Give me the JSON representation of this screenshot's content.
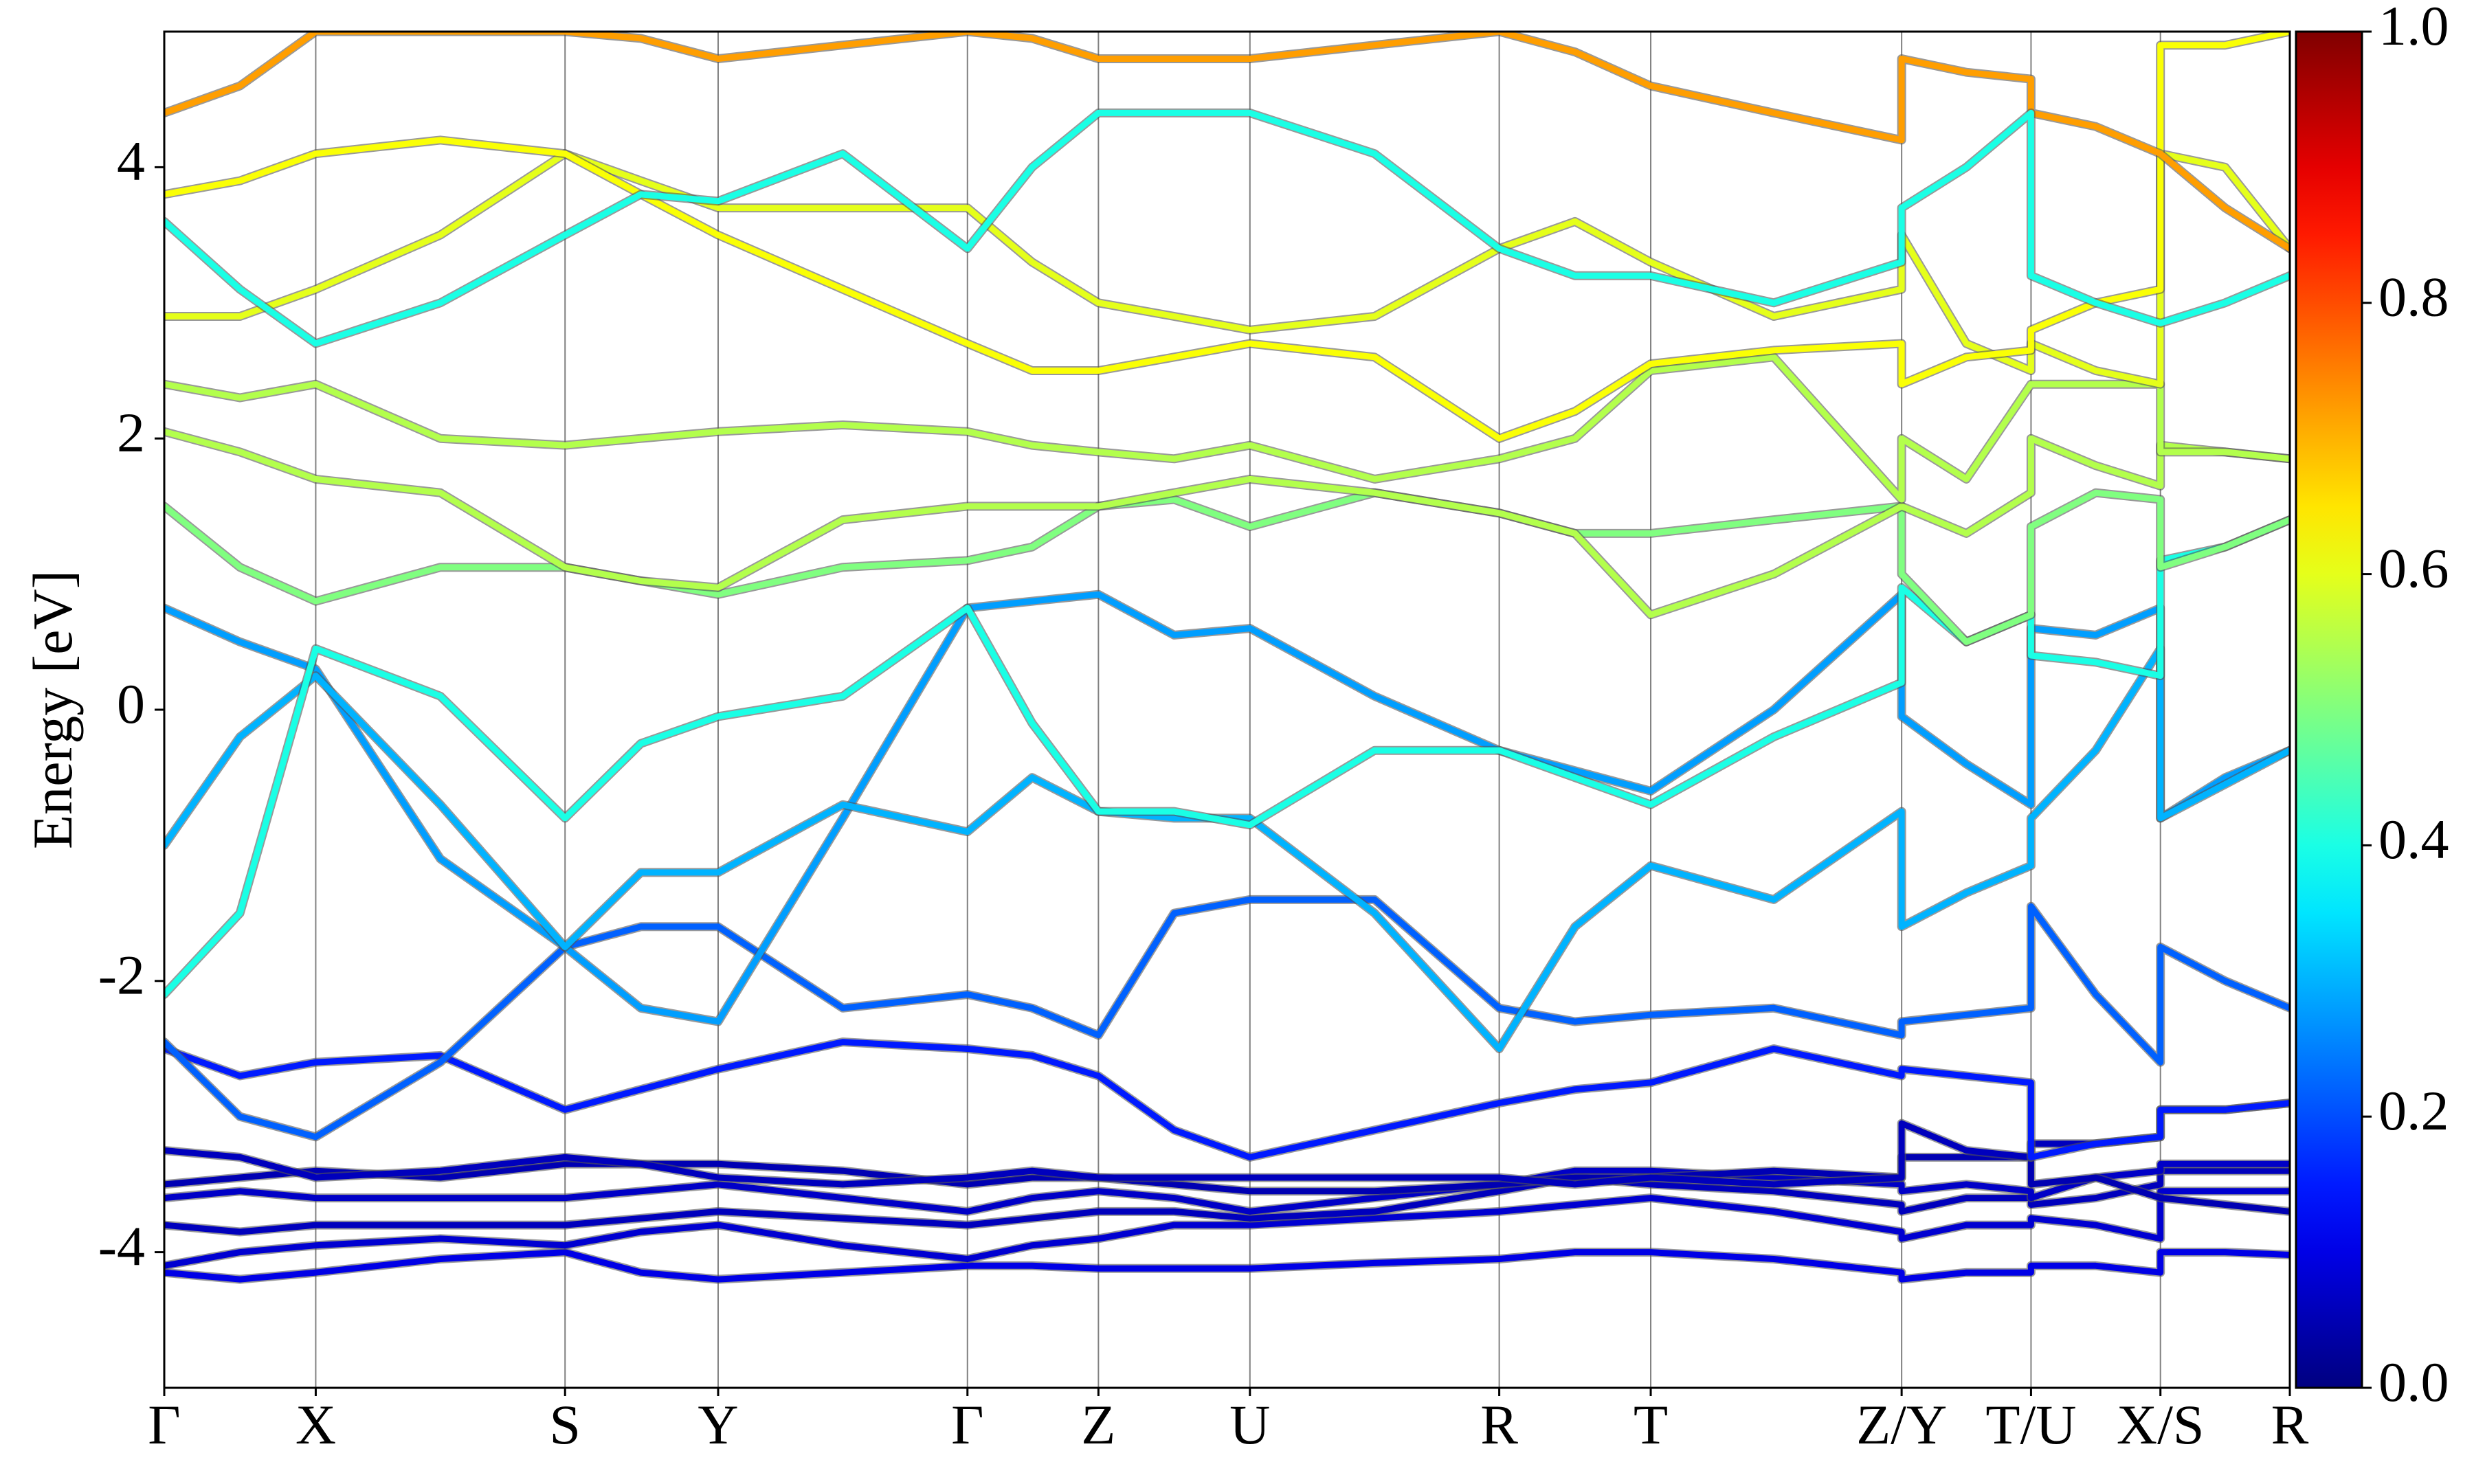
{
  "chart_data": {
    "type": "band",
    "y_label": "Energy [eV]",
    "xlim": [
      0,
      13.47
    ],
    "ylim": [
      -5,
      5
    ],
    "yticks": [
      -4,
      -2,
      0,
      2,
      4
    ],
    "xticks": [
      {
        "value": 0,
        "label": "Γ"
      },
      {
        "value": 0.96,
        "label": "X"
      },
      {
        "value": 2.54,
        "label": "S"
      },
      {
        "value": 3.51,
        "label": "Y"
      },
      {
        "value": 5.09,
        "label": "Γ"
      },
      {
        "value": 5.92,
        "label": "Z"
      },
      {
        "value": 6.88,
        "label": "U"
      },
      {
        "value": 8.46,
        "label": "R"
      },
      {
        "value": 9.42,
        "label": "T"
      },
      {
        "value": 11.01,
        "label": "Z/Y"
      },
      {
        "value": 11.83,
        "label": "T/U"
      },
      {
        "value": 12.65,
        "label": "X/S"
      },
      {
        "value": 13.47,
        "label": "R"
      }
    ],
    "colorbar": {
      "lim": [
        0,
        1
      ],
      "ticks": [
        {
          "value": 0,
          "label": "0.0"
        },
        0.2,
        0.4,
        0.6,
        0.8,
        {
          "value": 1,
          "label": "1.0"
        }
      ],
      "colormap": "jet"
    },
    "x": [
      0,
      0.48,
      0.96,
      1.75,
      2.54,
      3.02,
      3.51,
      4.3,
      5.09,
      5.5,
      5.92,
      6.4,
      6.88,
      7.67,
      8.46,
      8.94,
      9.42,
      10.2,
      11.01,
      11.01,
      11.42,
      11.83,
      11.83,
      12.24,
      12.65,
      12.65,
      13.06,
      13.47
    ],
    "series": [
      {
        "weight": 0.1,
        "values": [
          -4.15,
          -4.2,
          -4.15,
          -4.05,
          -4.0,
          -4.15,
          -4.2,
          -4.15,
          -4.1,
          -4.1,
          -4.12,
          -4.12,
          -4.12,
          -4.08,
          -4.05,
          -4.0,
          -4.0,
          -4.05,
          -4.15,
          -4.2,
          -4.15,
          -4.15,
          -4.1,
          -4.1,
          -4.15,
          -4.0,
          -4.0,
          -4.02
        ]
      },
      {
        "weight": 0.08,
        "values": [
          -4.1,
          -4.0,
          -3.95,
          -3.9,
          -3.95,
          -3.85,
          -3.8,
          -3.95,
          -4.05,
          -3.95,
          -3.9,
          -3.8,
          -3.8,
          -3.75,
          -3.7,
          -3.65,
          -3.6,
          -3.7,
          -3.85,
          -3.9,
          -3.8,
          -3.8,
          -3.75,
          -3.8,
          -3.9,
          -3.55,
          -3.55,
          -3.55
        ]
      },
      {
        "weight": 0.06,
        "values": [
          -3.8,
          -3.85,
          -3.8,
          -3.8,
          -3.8,
          -3.75,
          -3.7,
          -3.75,
          -3.8,
          -3.75,
          -3.7,
          -3.7,
          -3.75,
          -3.7,
          -3.55,
          -3.45,
          -3.5,
          -3.55,
          -3.65,
          -3.7,
          -3.6,
          -3.6,
          -3.65,
          -3.6,
          -3.5,
          -3.4,
          -3.4,
          -3.4
        ]
      },
      {
        "weight": 0.07,
        "values": [
          -3.6,
          -3.55,
          -3.6,
          -3.6,
          -3.6,
          -3.55,
          -3.5,
          -3.6,
          -3.7,
          -3.6,
          -3.55,
          -3.6,
          -3.7,
          -3.6,
          -3.5,
          -3.4,
          -3.4,
          -3.45,
          -3.5,
          -3.55,
          -3.5,
          -3.55,
          -3.6,
          -3.45,
          -3.4,
          -3.35,
          -3.35,
          -3.35
        ]
      },
      {
        "weight": 0.05,
        "values": [
          -3.5,
          -3.45,
          -3.4,
          -3.45,
          -3.35,
          -3.35,
          -3.35,
          -3.4,
          -3.5,
          -3.45,
          -3.45,
          -3.5,
          -3.55,
          -3.55,
          -3.5,
          -3.45,
          -3.45,
          -3.4,
          -3.45,
          -3.3,
          -3.3,
          -3.3,
          -3.5,
          -3.45,
          -3.6,
          -3.6,
          -3.65,
          -3.7
        ]
      },
      {
        "weight": 0.06,
        "values": [
          -3.25,
          -3.3,
          -3.45,
          -3.4,
          -3.3,
          -3.35,
          -3.45,
          -3.5,
          -3.45,
          -3.4,
          -3.45,
          -3.45,
          -3.45,
          -3.45,
          -3.45,
          -3.5,
          -3.45,
          -3.5,
          -3.45,
          -3.05,
          -3.25,
          -3.3,
          -3.2,
          -3.2,
          -3.15,
          -2.95,
          -2.95,
          -2.9
        ]
      },
      {
        "weight": 0.15,
        "values": [
          -2.5,
          -2.7,
          -2.6,
          -2.55,
          -2.95,
          -2.8,
          -2.65,
          -2.45,
          -2.5,
          -2.55,
          -2.7,
          -3.1,
          -3.3,
          -3.1,
          -2.9,
          -2.8,
          -2.75,
          -2.5,
          -2.7,
          -2.65,
          -2.7,
          -2.75,
          -3.3,
          -3.2,
          -3.15,
          -2.95,
          -2.95,
          -2.9
        ]
      },
      {
        "weight": 0.22,
        "values": [
          -2.45,
          -3.0,
          -3.15,
          -2.6,
          -1.75,
          -1.6,
          -1.6,
          -2.2,
          -2.1,
          -2.2,
          -2.4,
          -1.5,
          -1.4,
          -1.4,
          -2.2,
          -2.3,
          -2.25,
          -2.2,
          -2.4,
          -2.3,
          -2.25,
          -2.2,
          -1.45,
          -2.1,
          -2.6,
          -1.75,
          -2.0,
          -2.2
        ]
      },
      {
        "weight": 0.28,
        "values": [
          0.75,
          0.5,
          0.3,
          -1.1,
          -1.75,
          -2.2,
          -2.3,
          -0.8,
          0.75,
          0.8,
          0.85,
          0.55,
          0.6,
          0.1,
          -0.3,
          -0.45,
          -0.6,
          0.0,
          0.85,
          -0.05,
          -0.4,
          -0.7,
          0.6,
          0.55,
          0.75,
          -0.8,
          -0.5,
          -0.3
        ]
      },
      {
        "weight": 0.3,
        "values": [
          -1.0,
          -0.2,
          0.25,
          -0.7,
          -1.75,
          -1.2,
          -1.2,
          -0.7,
          -0.9,
          -0.5,
          -0.75,
          -0.8,
          -0.8,
          -1.5,
          -2.5,
          -1.6,
          -1.15,
          -1.4,
          -0.75,
          -1.6,
          -1.35,
          -1.15,
          -0.8,
          -0.3,
          0.45,
          -0.8,
          -0.55,
          -0.3
        ]
      },
      {
        "weight": 0.4,
        "values": [
          -2.1,
          -1.5,
          0.45,
          0.1,
          -0.8,
          -0.25,
          -0.05,
          0.1,
          0.75,
          -0.1,
          -0.75,
          -0.75,
          -0.85,
          -0.3,
          -0.3,
          -0.5,
          -0.7,
          -0.2,
          0.2,
          0.9,
          0.5,
          0.7,
          0.4,
          0.35,
          0.25,
          1.1,
          1.2,
          1.4
        ]
      },
      {
        "weight": 0.5,
        "values": [
          1.5,
          1.05,
          0.8,
          1.05,
          1.05,
          0.95,
          0.85,
          1.05,
          1.1,
          1.2,
          1.5,
          1.55,
          1.35,
          1.6,
          1.45,
          1.3,
          1.3,
          1.4,
          1.5,
          1.0,
          0.5,
          0.7,
          1.35,
          1.6,
          1.55,
          1.05,
          1.2,
          1.4
        ]
      },
      {
        "weight": 0.55,
        "values": [
          2.05,
          1.9,
          1.7,
          1.6,
          1.05,
          0.95,
          0.9,
          1.4,
          1.5,
          1.5,
          1.5,
          1.6,
          1.7,
          1.6,
          1.45,
          1.3,
          0.7,
          1.0,
          1.5,
          1.5,
          1.3,
          1.6,
          2.0,
          1.8,
          1.65,
          1.95,
          1.9,
          1.85
        ]
      },
      {
        "weight": 0.55,
        "values": [
          2.4,
          2.3,
          2.4,
          2.0,
          1.95,
          2.0,
          2.05,
          2.1,
          2.05,
          1.95,
          1.9,
          1.85,
          1.95,
          1.7,
          1.85,
          2.0,
          2.5,
          2.6,
          1.55,
          2.0,
          1.7,
          2.4,
          2.4,
          2.4,
          2.4,
          1.9,
          1.9,
          1.85
        ]
      },
      {
        "weight": 0.6,
        "values": [
          2.9,
          2.9,
          3.1,
          3.5,
          4.1,
          3.9,
          3.7,
          3.7,
          3.7,
          3.3,
          3.0,
          2.9,
          2.8,
          2.9,
          3.4,
          3.6,
          3.3,
          2.9,
          3.1,
          3.5,
          2.7,
          2.5,
          2.7,
          2.5,
          2.4,
          4.1,
          4.0,
          3.4
        ]
      },
      {
        "weight": 0.62,
        "values": [
          3.8,
          3.9,
          4.1,
          4.2,
          4.1,
          3.8,
          3.5,
          3.1,
          2.7,
          2.5,
          2.5,
          2.6,
          2.7,
          2.6,
          2.0,
          2.2,
          2.55,
          2.65,
          2.7,
          2.4,
          2.6,
          2.65,
          2.8,
          3.0,
          3.1,
          4.9,
          4.9,
          5.0
        ]
      },
      {
        "weight": 0.72,
        "values": [
          4.4,
          4.6,
          5.0,
          5.0,
          5.0,
          4.95,
          4.8,
          4.9,
          5.0,
          4.95,
          4.8,
          4.8,
          4.8,
          4.9,
          5.0,
          4.85,
          4.6,
          4.4,
          4.2,
          4.8,
          4.7,
          4.65,
          4.4,
          4.3,
          4.1,
          4.1,
          3.7,
          3.4
        ]
      },
      {
        "weight": 0.4,
        "values": [
          3.6,
          3.1,
          2.7,
          3.0,
          3.5,
          3.8,
          3.75,
          4.1,
          3.4,
          4.0,
          4.4,
          4.4,
          4.4,
          4.1,
          3.4,
          3.2,
          3.2,
          3.0,
          3.3,
          3.7,
          4.0,
          4.4,
          3.2,
          3.0,
          2.85,
          2.85,
          3.0,
          3.2
        ]
      }
    ]
  }
}
